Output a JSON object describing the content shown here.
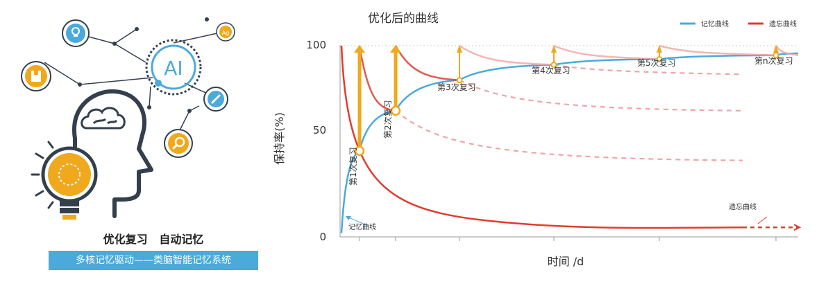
{
  "illustration": {
    "icons": [
      "lightbulb-icon",
      "ai-icon",
      "book-icon",
      "notes-icon",
      "search-icon",
      "pen-icon",
      "head-icon",
      "brain-icon"
    ],
    "ai_text": "AI",
    "ag_text": "Ag",
    "headline": "优化复习   自动记忆",
    "caption": "多核记忆驱动——类脑智能记忆系统",
    "colors": {
      "accent_orange": "#f0a81c",
      "accent_blue": "#4aaadb",
      "dark": "#333f4d"
    }
  },
  "chart_data": {
    "type": "line",
    "title": "优化后的曲线",
    "xlabel": "时间 /d",
    "ylabel": "保持率(%)",
    "ylim": [
      0,
      100
    ],
    "yticks": [
      "0",
      "50",
      "100"
    ],
    "grid": false,
    "legend_position": "top-right",
    "legend": [
      {
        "name": "记忆曲线",
        "color": "#4aaadb"
      },
      {
        "name": "遗忘曲线",
        "color": "#e23b2e"
      }
    ],
    "review_labels": [
      "第1次复习",
      "第2次复习",
      "第3次复习",
      "第4次复习",
      "第5次复习",
      "第n次复习"
    ],
    "review_retention_before": [
      45,
      66,
      82,
      90,
      93,
      95
    ],
    "retention_after_review": 100,
    "memory_curve_label": "记忆曲线",
    "forgetting_curve_label": "遗忘曲线",
    "dashed_forgetting_tails_end": [
      40,
      66,
      85
    ],
    "forgetting_curve_floor": 5,
    "colors": {
      "memory": "#4aaadb",
      "forgetting": "#e23b2e",
      "review_arrow": "#f0a81c",
      "light_red": "#f2a3a3"
    }
  }
}
